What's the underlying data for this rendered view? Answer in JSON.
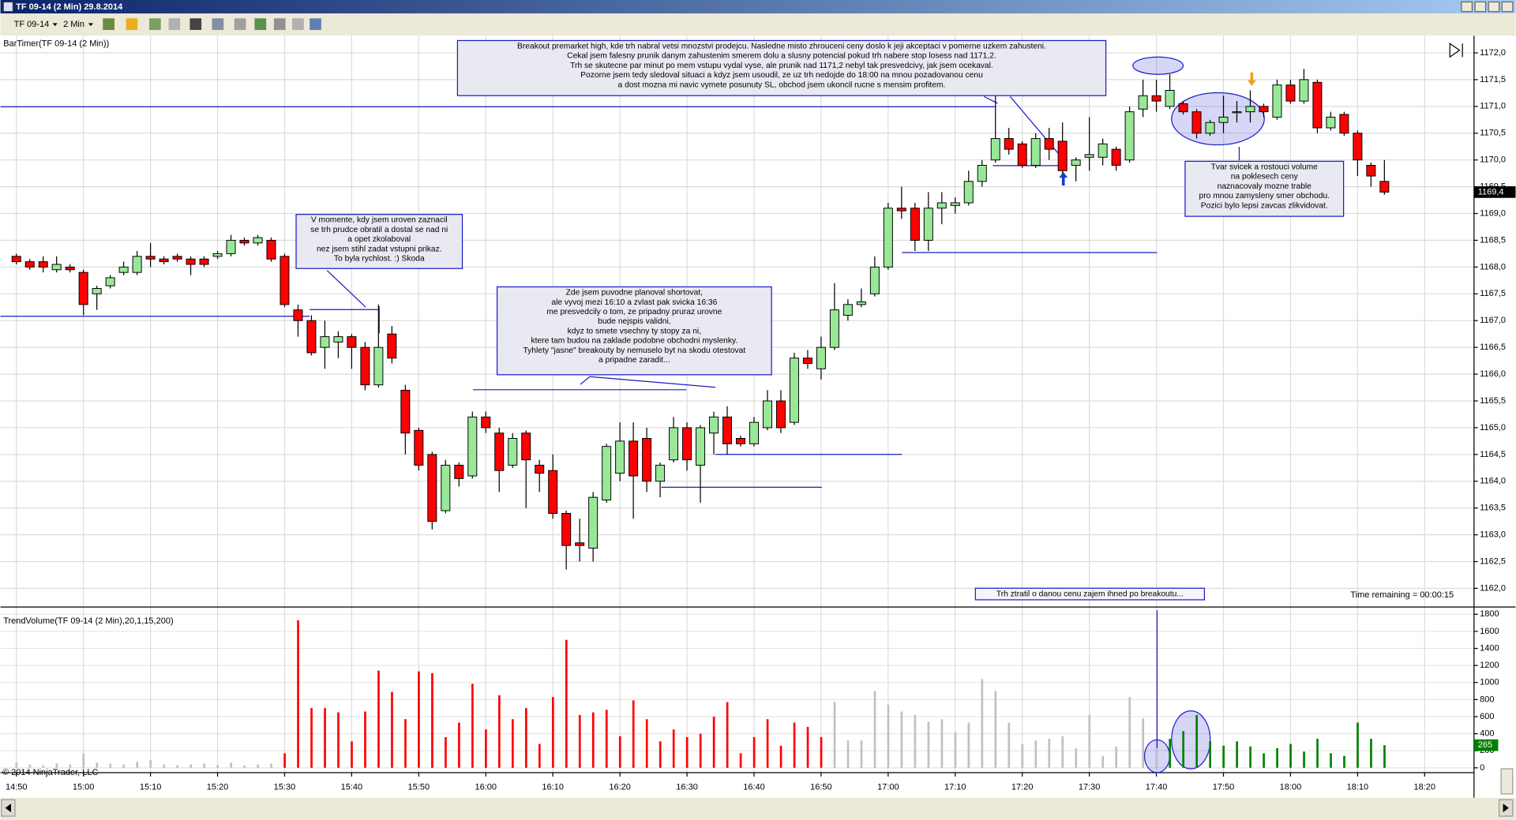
{
  "window": {
    "title": "TF 09-14 (2 Min)  29.8.2014",
    "instrument": "TF 09-14",
    "interval": "2 Min"
  },
  "footer": "© 2014 NinjaTrader, LLC",
  "chart_data": [
    {
      "type": "candlestick",
      "title": "BarTimer(TF 09-14 (2 Min))",
      "status": "Time remaining = 00:00:15",
      "up_color": "#98e898",
      "down_color": "#ff0000",
      "open": [
        1168.2,
        1168.1,
        1168.1,
        1167.95,
        1168.0,
        1167.9,
        1167.5,
        1167.65,
        1167.9,
        1167.9,
        1168.2,
        1168.15,
        1168.2,
        1168.15,
        1168.15,
        1168.2,
        1168.25,
        1168.5,
        1168.45,
        1168.5,
        1168.2,
        1167.2,
        1167.0,
        1166.5,
        1166.6,
        1166.7,
        1166.5,
        1165.8,
        1166.75,
        1165.7,
        1164.95,
        1164.5,
        1163.45,
        1164.3,
        1164.1,
        1165.2,
        1164.9,
        1164.3,
        1164.9,
        1164.3,
        1164.2,
        1163.4,
        1162.85,
        1162.75,
        1163.65,
        1164.15,
        1164.75,
        1164.8,
        1164.0,
        1164.4,
        1165.0,
        1164.3,
        1164.9,
        1165.2,
        1164.8,
        1164.7,
        1165.0,
        1165.5,
        1165.1,
        1166.3,
        1166.1,
        1166.5,
        1167.1,
        1167.3,
        1167.5,
        1168.0,
        1169.1,
        1169.1,
        1168.5,
        1169.1,
        1169.15,
        1169.2,
        1169.6,
        1170.0,
        1170.4,
        1170.3,
        1169.9,
        1170.4,
        1170.35,
        1169.9,
        1170.05,
        1170.05,
        1170.2,
        1170.0,
        1170.95,
        1171.2,
        1171.0,
        1171.05,
        1170.9,
        1170.5,
        1170.7,
        1170.9,
        1170.9,
        1171.0,
        1170.8,
        1171.4,
        1171.1,
        1171.45,
        1170.6,
        1170.85,
        1170.5,
        1169.9,
        1169.6,
        null,
        null,
        null
      ],
      "high": [
        1168.25,
        1168.15,
        1168.2,
        1168.2,
        1168.05,
        1167.95,
        1167.65,
        1167.85,
        1168.1,
        1168.3,
        1168.45,
        1168.2,
        1168.25,
        1168.2,
        1168.2,
        1168.3,
        1168.6,
        1168.55,
        1168.6,
        1168.55,
        1168.25,
        1167.3,
        1167.1,
        1167.0,
        1166.8,
        1166.75,
        1166.6,
        1167.3,
        1166.9,
        1165.8,
        1165.0,
        1164.55,
        1164.4,
        1164.35,
        1165.3,
        1165.3,
        1165.0,
        1164.9,
        1164.95,
        1164.4,
        1164.5,
        1163.45,
        1163.3,
        1163.8,
        1164.7,
        1165.1,
        1165.1,
        1165.0,
        1164.35,
        1165.2,
        1165.1,
        1165.05,
        1165.3,
        1165.4,
        1164.85,
        1165.2,
        1165.7,
        1165.7,
        1166.4,
        1166.45,
        1166.7,
        1167.7,
        1167.4,
        1167.6,
        1168.2,
        1169.2,
        1169.5,
        1169.2,
        1169.4,
        1169.4,
        1169.3,
        1169.8,
        1170.0,
        1171.2,
        1170.6,
        1170.35,
        1170.5,
        1170.6,
        1170.7,
        1170.05,
        1170.8,
        1170.4,
        1170.25,
        1171.0,
        1171.5,
        1171.5,
        1171.6,
        1171.1,
        1170.95,
        1170.75,
        1171.2,
        1171.1,
        1171.3,
        1171.05,
        1171.5,
        1171.5,
        1171.7,
        1171.5,
        1170.9,
        1170.9,
        1170.55,
        1169.95,
        1170.0,
        null,
        null,
        null
      ],
      "low": [
        1168.05,
        1167.95,
        1167.9,
        1167.9,
        1167.9,
        1167.1,
        1167.2,
        1167.6,
        1167.85,
        1167.85,
        1168.0,
        1168.05,
        1168.1,
        1167.85,
        1168.0,
        1168.15,
        1168.2,
        1168.4,
        1168.4,
        1168.1,
        1167.25,
        1166.7,
        1166.35,
        1166.1,
        1166.3,
        1166.1,
        1165.7,
        1165.75,
        1166.2,
        1164.5,
        1164.2,
        1163.1,
        1163.4,
        1163.9,
        1164.05,
        1164.9,
        1163.8,
        1164.25,
        1163.5,
        1163.8,
        1163.3,
        1162.35,
        1162.5,
        1162.5,
        1163.6,
        1164.0,
        1163.3,
        1163.8,
        1163.7,
        1164.35,
        1164.2,
        1163.6,
        1164.5,
        1164.5,
        1164.65,
        1164.65,
        1164.95,
        1164.9,
        1165.05,
        1166.1,
        1165.9,
        1166.45,
        1167.0,
        1167.25,
        1167.45,
        1167.95,
        1168.9,
        1168.3,
        1168.3,
        1168.8,
        1169.0,
        1169.15,
        1169.5,
        1169.95,
        1170.1,
        1169.85,
        1169.85,
        1170.0,
        1169.75,
        1169.6,
        1169.8,
        1169.9,
        1169.8,
        1169.95,
        1170.8,
        1170.9,
        1170.95,
        1170.85,
        1170.4,
        1170.45,
        1170.5,
        1170.7,
        1170.7,
        1170.8,
        1170.75,
        1171.05,
        1171.05,
        1170.5,
        1170.55,
        1170.45,
        1169.7,
        1169.5,
        1169.35,
        null,
        null,
        null
      ],
      "close": [
        1168.1,
        1168.0,
        1168.0,
        1168.05,
        1167.95,
        1167.3,
        1167.6,
        1167.8,
        1168.0,
        1168.2,
        1168.15,
        1168.1,
        1168.15,
        1168.05,
        1168.05,
        1168.25,
        1168.5,
        1168.45,
        1168.55,
        1168.15,
        1167.3,
        1167.0,
        1166.4,
        1166.7,
        1166.7,
        1166.5,
        1165.8,
        1166.5,
        1166.3,
        1164.9,
        1164.3,
        1163.25,
        1164.3,
        1164.05,
        1165.2,
        1165.0,
        1164.2,
        1164.8,
        1164.4,
        1164.15,
        1163.4,
        1162.8,
        1162.8,
        1163.7,
        1164.65,
        1164.75,
        1164.1,
        1164.0,
        1164.3,
        1165.0,
        1164.4,
        1165.0,
        1165.2,
        1164.7,
        1164.7,
        1165.1,
        1165.5,
        1165.0,
        1166.3,
        1166.2,
        1166.5,
        1167.2,
        1167.3,
        1167.35,
        1168.0,
        1169.1,
        1169.05,
        1168.5,
        1169.1,
        1169.2,
        1169.2,
        1169.6,
        1169.9,
        1170.4,
        1170.2,
        1169.9,
        1170.4,
        1170.2,
        1169.8,
        1170.0,
        1170.1,
        1170.3,
        1169.9,
        1170.9,
        1171.2,
        1171.1,
        1171.3,
        1170.9,
        1170.5,
        1170.7,
        1170.8,
        1170.9,
        1171.0,
        1170.9,
        1171.4,
        1171.1,
        1171.5,
        1170.6,
        1170.8,
        1170.5,
        1170.0,
        1169.7,
        1169.4,
        null,
        null,
        null
      ],
      "last_price": {
        "value": 1169.4,
        "label": "1169,4"
      },
      "ylim": [
        1161.66,
        1172.32
      ],
      "yticks": [
        {
          "value": 1162.0,
          "label": "1162,0"
        },
        {
          "value": 1162.5,
          "label": "1162,5"
        },
        {
          "value": 1163.0,
          "label": "1163,0"
        },
        {
          "value": 1163.5,
          "label": "1163,5"
        },
        {
          "value": 1164.0,
          "label": "1164,0"
        },
        {
          "value": 1164.5,
          "label": "1164,5"
        },
        {
          "value": 1165.0,
          "label": "1165,0"
        },
        {
          "value": 1165.5,
          "label": "1165,5"
        },
        {
          "value": 1166.0,
          "label": "1166,0"
        },
        {
          "value": 1166.5,
          "label": "1166,5"
        },
        {
          "value": 1167.0,
          "label": "1167,0"
        },
        {
          "value": 1167.5,
          "label": "1167,5"
        },
        {
          "value": 1168.0,
          "label": "1168,0"
        },
        {
          "value": 1168.5,
          "label": "1168,5"
        },
        {
          "value": 1169.0,
          "label": "1169,0"
        },
        {
          "value": 1169.5,
          "label": "1169,5"
        },
        {
          "value": 1170.0,
          "label": "1170,0"
        },
        {
          "value": 1170.5,
          "label": "1170,5"
        },
        {
          "value": 1171.0,
          "label": "1171,0"
        },
        {
          "value": 1171.5,
          "label": "1171,5"
        },
        {
          "value": 1172.0,
          "label": "1172,0"
        }
      ],
      "grid": true,
      "annotations": [
        {
          "lines": [
            "Breakout premarket high, kde trh nabral vetsi mnozstvi prodejcu. Nasledne misto zhrouceni ceny doslo k jeji akceptaci v pomerne uzkem zahusteni.",
            "Cekal jsem falesny prunik danym zahustenim smerem dolu a slusny potencial pokud trh nabere stop losess nad 1171,2.",
            "Trh se skutecne par minut po mem vstupu vydal vyse, ale prunik nad 1171,2 nebyl tak presvedcivy, jak jsem ocekaval.",
            "Pozorne jsem tedy sledoval situaci a kdyz jsem usoudil, ze uz trh nedojde do 18:00 na mnou pozadovanou cenu",
            "a dost mozna mi navic vymete posunuty SL, obchod jsem ukoncil rucne s mensim profitem."
          ]
        },
        {
          "lines": [
            "V momente, kdy jsem uroven zaznacil",
            "se trh prudce obratil a dostal se nad ni",
            "a opet zkolaboval",
            "nez jsem stihl zadat vstupni prikaz.",
            "To byla rychlost. :) Skoda"
          ]
        },
        {
          "lines": [
            "Zde jsem puvodne planoval shortovat,",
            "ale vyvoj mezi 16:10 a zvlast pak svicka 16:36",
            "me presvedcily o tom, ze pripadny pruraz urovne",
            "bude nejspis validni,",
            "kdyz to smete vsechny ty stopy za ni,",
            "ktere tam budou na zaklade podobne obchodni myslenky.",
            "Tyhlety \"jasne\" breakouty by nemuselo byt na skodu otestovat",
            "a pripadne zaradit..."
          ]
        },
        {
          "lines": [
            "Tvar svicek a rostouci volume",
            "na poklesech ceny",
            "naznacovaly mozne trable",
            "pro mnou zamysleny smer obchodu.",
            "Pozici bylo lepsi zavcas zlikvidovat."
          ]
        },
        {
          "lines": [
            "Trh ztratil o danou cenu zajem ihned po breakoutu..."
          ]
        }
      ]
    },
    {
      "type": "bar",
      "title": "TrendVolume(TF 09-14 (2 Min),20,1,15,200)",
      "categories": [
        "14:50",
        null,
        null,
        null,
        null,
        "15:00",
        null,
        null,
        null,
        null,
        "15:10",
        null,
        null,
        null,
        null,
        "15:20",
        null,
        null,
        null,
        null,
        "15:30",
        null,
        null,
        null,
        null,
        "15:40",
        null,
        null,
        null,
        null,
        "15:50",
        null,
        null,
        null,
        null,
        "16:00",
        null,
        null,
        null,
        null,
        "16:10",
        null,
        null,
        null,
        null,
        "16:20",
        null,
        null,
        null,
        null,
        "16:30",
        null,
        null,
        null,
        null,
        "16:40",
        null,
        null,
        null,
        null,
        "16:50",
        null,
        null,
        null,
        null,
        "17:00",
        null,
        null,
        null,
        null,
        "17:10",
        null,
        null,
        null,
        null,
        "17:20",
        null,
        null,
        null,
        null,
        "17:30",
        null,
        null,
        null,
        null,
        "17:40",
        null,
        null,
        null,
        null,
        "17:50",
        null,
        null,
        null,
        null,
        "18:00",
        null,
        null,
        null,
        null,
        "18:10",
        null,
        null,
        null,
        null,
        "18:20"
      ],
      "values": [
        60,
        40,
        30,
        50,
        40,
        170,
        60,
        50,
        40,
        70,
        90,
        40,
        30,
        40,
        50,
        30,
        60,
        30,
        40,
        50,
        170,
        1730,
        700,
        700,
        650,
        310,
        660,
        1140,
        890,
        570,
        1130,
        1110,
        360,
        530,
        985,
        450,
        850,
        570,
        700,
        280,
        830,
        1500,
        620,
        650,
        680,
        370,
        790,
        570,
        310,
        450,
        360,
        400,
        600,
        770,
        170,
        360,
        570,
        260,
        530,
        480,
        360,
        770,
        320,
        320,
        900,
        740,
        660,
        620,
        540,
        570,
        420,
        530,
        1040,
        900,
        530,
        280,
        320,
        340,
        370,
        230,
        620,
        140,
        250,
        830,
        580,
        230,
        340,
        430,
        620,
        310,
        260,
        310,
        250,
        170,
        230,
        280,
        190,
        340,
        170,
        140,
        530,
        340,
        265,
        null,
        null,
        null
      ],
      "colors": [
        "#c0c0c0",
        "#c0c0c0",
        "#c0c0c0",
        "#c0c0c0",
        "#c0c0c0",
        "#c0c0c0",
        "#c0c0c0",
        "#c0c0c0",
        "#c0c0c0",
        "#c0c0c0",
        "#c0c0c0",
        "#c0c0c0",
        "#c0c0c0",
        "#c0c0c0",
        "#c0c0c0",
        "#c0c0c0",
        "#c0c0c0",
        "#c0c0c0",
        "#c0c0c0",
        "#c0c0c0",
        "#ff0000",
        "#ff0000",
        "#ff0000",
        "#ff0000",
        "#ff0000",
        "#ff0000",
        "#ff0000",
        "#ff0000",
        "#ff0000",
        "#ff0000",
        "#ff0000",
        "#ff0000",
        "#ff0000",
        "#ff0000",
        "#ff0000",
        "#ff0000",
        "#ff0000",
        "#ff0000",
        "#ff0000",
        "#ff0000",
        "#ff0000",
        "#ff0000",
        "#ff0000",
        "#ff0000",
        "#ff0000",
        "#ff0000",
        "#ff0000",
        "#ff0000",
        "#ff0000",
        "#ff0000",
        "#ff0000",
        "#ff0000",
        "#ff0000",
        "#ff0000",
        "#ff0000",
        "#ff0000",
        "#ff0000",
        "#ff0000",
        "#ff0000",
        "#ff0000",
        "#ff0000",
        "#c0c0c0",
        "#c0c0c0",
        "#c0c0c0",
        "#c0c0c0",
        "#c0c0c0",
        "#c0c0c0",
        "#c0c0c0",
        "#c0c0c0",
        "#c0c0c0",
        "#c0c0c0",
        "#c0c0c0",
        "#c0c0c0",
        "#c0c0c0",
        "#c0c0c0",
        "#c0c0c0",
        "#c0c0c0",
        "#c0c0c0",
        "#c0c0c0",
        "#c0c0c0",
        "#c0c0c0",
        "#c0c0c0",
        "#c0c0c0",
        "#c0c0c0",
        "#c0c0c0",
        "#c0c0c0",
        "#008000",
        "#008000",
        "#008000",
        "#008000",
        "#008000",
        "#008000",
        "#008000",
        "#008000",
        "#008000",
        "#008000",
        "#008000",
        "#008000",
        "#008000",
        "#008000",
        "#008000",
        "#008000",
        "#008000",
        null,
        null,
        null
      ],
      "ylim": [
        -57,
        1868
      ],
      "yticks": [
        0,
        200,
        400,
        600,
        800,
        1000,
        1200,
        1400,
        1600,
        1800
      ],
      "grid": true
    }
  ]
}
